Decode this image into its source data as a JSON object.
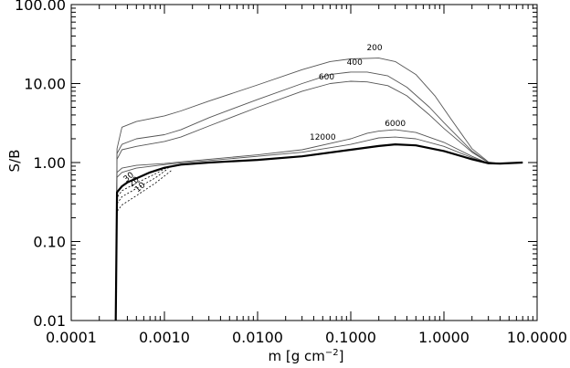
{
  "chart_data": {
    "type": "line",
    "xlabel": "m [g cm",
    "xlabel_sup": "−2",
    "xlabel_close": "]",
    "ylabel": "S/B",
    "xscale": "log",
    "yscale": "log",
    "xlim": [
      0.0001,
      10.0
    ],
    "ylim": [
      0.01,
      100.0
    ],
    "grid": false,
    "x_ticks": [
      0.0001,
      0.001,
      0.01,
      0.1,
      1.0,
      10.0
    ],
    "x_tick_labels": [
      "0.0001",
      "0.0010",
      "0.0100",
      "0.1000",
      "1.0000",
      "10.0000"
    ],
    "y_ticks": [
      0.01,
      0.1,
      1.0,
      10.0,
      100.0
    ],
    "y_tick_labels": [
      "0.01",
      "0.10",
      "1.00",
      "10.00",
      "100.00"
    ],
    "colors": {
      "thin": "#555555",
      "thick": "#000000"
    },
    "series": [
      {
        "name": "200",
        "style": "thin",
        "x": [
          0.0003,
          0.00031,
          0.00035,
          0.0005,
          0.001,
          0.0015,
          0.003,
          0.01,
          0.03,
          0.06,
          0.1,
          0.2,
          0.3,
          0.5,
          0.8,
          1.2,
          2.0,
          3.0,
          4.0,
          7.0
        ],
        "y": [
          0.01,
          1.5,
          2.8,
          3.3,
          3.9,
          4.5,
          6.0,
          9.6,
          15,
          19,
          20.5,
          21,
          19,
          13,
          7,
          3.5,
          1.5,
          1.02,
          0.97,
          1.0
        ],
        "label_at": [
          0.18,
          26.5
        ]
      },
      {
        "name": "400",
        "style": "thin",
        "x": [
          0.0003,
          0.00031,
          0.00035,
          0.0005,
          0.001,
          0.0015,
          0.003,
          0.01,
          0.03,
          0.06,
          0.1,
          0.15,
          0.25,
          0.4,
          0.7,
          1.0,
          2.0,
          3.0,
          4.0,
          7.0
        ],
        "y": [
          0.01,
          1.3,
          1.7,
          2.0,
          2.25,
          2.6,
          3.7,
          6.3,
          10.0,
          13.0,
          14.0,
          14.0,
          12.5,
          9.0,
          5.0,
          3.2,
          1.4,
          1.0,
          0.97,
          1.0
        ],
        "label_at": [
          0.11,
          17.3
        ]
      },
      {
        "name": "600",
        "style": "thin",
        "x": [
          0.0003,
          0.00031,
          0.00035,
          0.0005,
          0.001,
          0.0015,
          0.003,
          0.01,
          0.03,
          0.06,
          0.1,
          0.15,
          0.25,
          0.4,
          0.7,
          1.0,
          2.0,
          3.0,
          4.0,
          7.0
        ],
        "y": [
          0.01,
          1.1,
          1.45,
          1.6,
          1.85,
          2.1,
          2.9,
          5.0,
          8.0,
          10.0,
          10.7,
          10.5,
          9.4,
          7.0,
          4.0,
          2.7,
          1.35,
          1.0,
          0.97,
          1.0
        ],
        "label_at": [
          0.055,
          11.2
        ]
      },
      {
        "name": "6000",
        "style": "thin",
        "x": [
          0.0003,
          0.00031,
          0.00035,
          0.0005,
          0.001,
          0.0015,
          0.003,
          0.01,
          0.03,
          0.1,
          0.15,
          0.2,
          0.3,
          0.5,
          1.0,
          2.0,
          3.0,
          4.0,
          7.0
        ],
        "y": [
          0.01,
          0.75,
          0.85,
          0.92,
          0.97,
          1.02,
          1.1,
          1.25,
          1.45,
          2.0,
          2.35,
          2.5,
          2.6,
          2.4,
          1.8,
          1.2,
          0.98,
          0.97,
          1.0
        ],
        "label_at": [
          0.3,
          2.9
        ]
      },
      {
        "name": "12000",
        "style": "thin",
        "x": [
          0.0003,
          0.00031,
          0.00035,
          0.0005,
          0.001,
          0.0015,
          0.003,
          0.01,
          0.03,
          0.1,
          0.15,
          0.2,
          0.3,
          0.5,
          1.0,
          2.0,
          3.0,
          4.0,
          7.0
        ],
        "y": [
          0.01,
          0.65,
          0.75,
          0.85,
          0.94,
          0.99,
          1.06,
          1.2,
          1.35,
          1.7,
          1.9,
          2.05,
          2.1,
          2.0,
          1.6,
          1.15,
          0.98,
          0.97,
          1.0
        ],
        "label_at": [
          0.05,
          1.95
        ]
      },
      {
        "name": "30",
        "style": "dashed",
        "x": [
          0.0003,
          0.00031,
          0.00035,
          0.0005,
          0.0008,
          0.0011
        ],
        "y": [
          0.01,
          0.36,
          0.44,
          0.55,
          0.72,
          0.88
        ],
        "label_at": [
          0.00043,
          0.62
        ]
      },
      {
        "name": "20",
        "style": "dashed",
        "x": [
          0.0003,
          0.00031,
          0.00035,
          0.0005,
          0.0008,
          0.0011
        ],
        "y": [
          0.01,
          0.3,
          0.37,
          0.47,
          0.64,
          0.84
        ],
        "label_at": [
          0.00049,
          0.54
        ]
      },
      {
        "name": "10",
        "style": "dashed",
        "x": [
          0.0003,
          0.00031,
          0.00035,
          0.0005,
          0.0008,
          0.0012
        ],
        "y": [
          0.01,
          0.24,
          0.29,
          0.38,
          0.55,
          0.8
        ],
        "label_at": [
          0.00057,
          0.46
        ]
      },
      {
        "name": "",
        "style": "thick",
        "x": [
          0.0003,
          0.00031,
          0.00035,
          0.0004,
          0.0005,
          0.0007,
          0.001,
          0.0015,
          0.003,
          0.01,
          0.03,
          0.1,
          0.2,
          0.3,
          0.5,
          1.0,
          2.0,
          3.0,
          4.0,
          7.0
        ],
        "y": [
          0.01,
          0.42,
          0.5,
          0.56,
          0.63,
          0.75,
          0.86,
          0.94,
          1.0,
          1.08,
          1.2,
          1.45,
          1.62,
          1.7,
          1.65,
          1.4,
          1.1,
          0.98,
          0.97,
          1.0
        ]
      }
    ]
  }
}
